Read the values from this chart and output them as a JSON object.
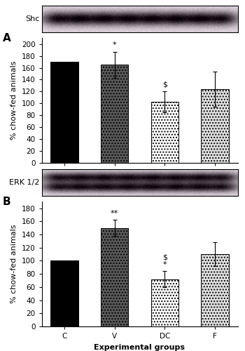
{
  "panel_A": {
    "label": "A",
    "blot_label": "Shc",
    "categories": [
      "C",
      "V",
      "DC",
      "F"
    ],
    "values": [
      170,
      165,
      103,
      124
    ],
    "errors": [
      0,
      22,
      18,
      30
    ],
    "bar_colors": [
      "black",
      "dark_hatch",
      "white_hatch",
      "light_hatch"
    ],
    "annotations": [
      "",
      "*",
      "$",
      ""
    ],
    "ylabel": "% chow-fed animals",
    "xlabel": "Experimental groups",
    "ylim": [
      0,
      210
    ],
    "yticks": [
      0,
      20,
      40,
      60,
      80,
      100,
      120,
      140,
      160,
      180,
      200
    ]
  },
  "panel_B": {
    "label": "B",
    "blot_label": "ERK 1/2",
    "categories": [
      "C",
      "V",
      "DC",
      "F"
    ],
    "values": [
      101,
      150,
      72,
      110
    ],
    "errors": [
      0,
      12,
      12,
      18
    ],
    "bar_colors": [
      "black",
      "dark_hatch",
      "white_hatch",
      "light_hatch"
    ],
    "annotations": [
      "",
      "**",
      "$\n*",
      ""
    ],
    "ylabel": "% chow-fed animals",
    "xlabel": "Experimental groups",
    "ylim": [
      0,
      190
    ],
    "yticks": [
      0,
      20,
      40,
      60,
      80,
      100,
      120,
      140,
      160,
      180
    ]
  },
  "figure_bg": "#ffffff",
  "bar_width": 0.55,
  "annotation_fontsize": 8,
  "label_fontsize": 8,
  "tick_fontsize": 7.5,
  "axis_label_fontsize": 8
}
